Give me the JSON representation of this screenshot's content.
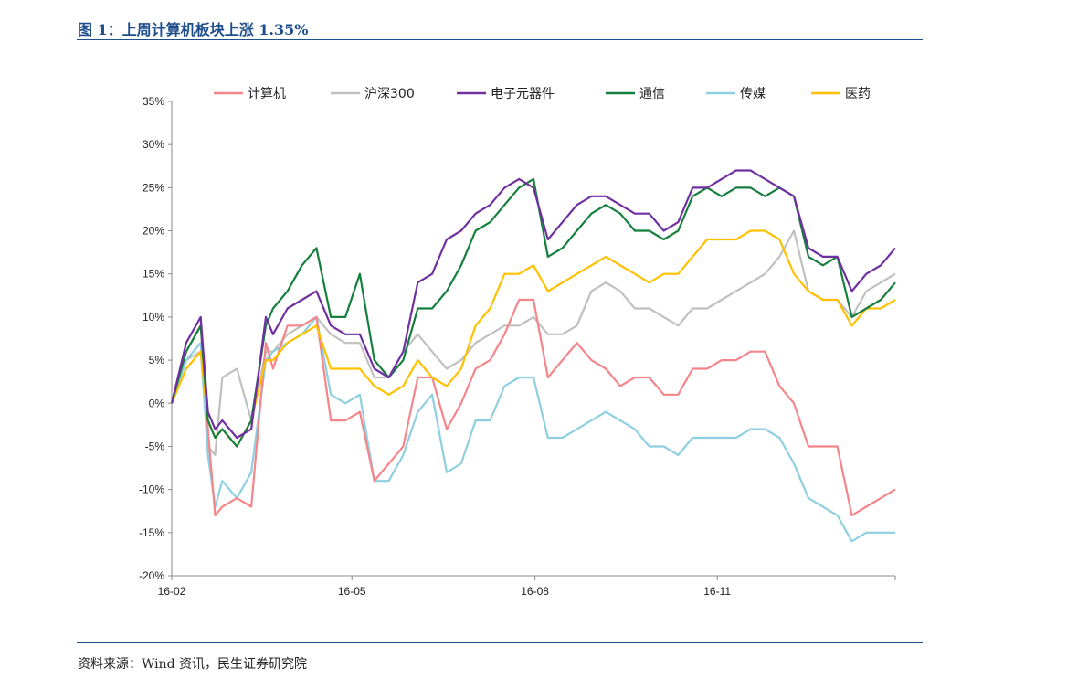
{
  "header": {
    "figure_title": "图 1：上周计算机板块上涨 1.35%"
  },
  "footer": {
    "source": "资料来源：Wind 资讯，民生证券研究院"
  },
  "chart_data": {
    "type": "line",
    "title": "",
    "xlabel": "",
    "ylabel": "",
    "ylim": [
      -20,
      35
    ],
    "xlim": [
      0,
      100
    ],
    "y_ticks": [
      35,
      30,
      25,
      20,
      15,
      10,
      5,
      0,
      -5,
      -10,
      -15,
      -20
    ],
    "y_tick_labels": [
      "35%",
      "30%",
      "25%",
      "20%",
      "15%",
      "10%",
      "5%",
      "0%",
      "-5%",
      "-10%",
      "-15%",
      "-20%"
    ],
    "x_ticks": [
      {
        "x": 0,
        "label": "16-02"
      },
      {
        "x": 24.9,
        "label": "16-05"
      },
      {
        "x": 50.2,
        "label": "16-08"
      },
      {
        "x": 75.4,
        "label": "16-11"
      }
    ],
    "legend": "top",
    "grid": false,
    "x": [
      0,
      2,
      4,
      5,
      6,
      7,
      9,
      11,
      13,
      14,
      16,
      18,
      20,
      22,
      24,
      26,
      28,
      30,
      32,
      34,
      36,
      38,
      40,
      42,
      44,
      46,
      48,
      50,
      52,
      54,
      56,
      58,
      60,
      62,
      64,
      66,
      68,
      70,
      72,
      74,
      76,
      78,
      80,
      82,
      84,
      86,
      88,
      90,
      92,
      94,
      96,
      98,
      100
    ],
    "series": [
      {
        "name": "计算机",
        "color": "#f4858a",
        "values": [
          0,
          6,
          9,
          -3,
          -13,
          -12,
          -11,
          -12,
          7,
          4,
          9,
          9,
          10,
          -2,
          -2,
          -1,
          -9,
          -7,
          -5,
          3,
          3,
          -3,
          0,
          4,
          5,
          8,
          12,
          12,
          3,
          5,
          7,
          5,
          4,
          2,
          3,
          3,
          1,
          1,
          4,
          4,
          5,
          5,
          6,
          6,
          2,
          0,
          -5,
          -5,
          -5,
          -13,
          -12,
          -11,
          -10
        ]
      },
      {
        "name": "沪深300",
        "color": "#c0c0c0",
        "values": [
          0,
          5,
          6,
          -5,
          -6,
          3,
          4,
          -2,
          6,
          6,
          8,
          9,
          10,
          8,
          7,
          7,
          3,
          3,
          6,
          8,
          6,
          4,
          5,
          7,
          8,
          9,
          9,
          10,
          8,
          8,
          9,
          13,
          14,
          13,
          11,
          11,
          10,
          9,
          11,
          11,
          12,
          13,
          14,
          15,
          17,
          20,
          13,
          12,
          12,
          10,
          13,
          14,
          15
        ]
      },
      {
        "name": "电子元器件",
        "color": "#7030a0",
        "values": [
          0,
          7,
          10,
          -1,
          -3,
          -2,
          -4,
          -3,
          10,
          8,
          11,
          12,
          13,
          9,
          8,
          8,
          4,
          3,
          6,
          14,
          15,
          19,
          20,
          22,
          23,
          25,
          26,
          25,
          19,
          21,
          23,
          24,
          24,
          23,
          22,
          22,
          20,
          21,
          25,
          25,
          26,
          27,
          27,
          26,
          25,
          24,
          18,
          17,
          17,
          13,
          15,
          16,
          18
        ]
      },
      {
        "name": "通信",
        "color": "#157f3d",
        "values": [
          0,
          6,
          9,
          -2,
          -4,
          -3,
          -5,
          -2,
          9,
          11,
          13,
          16,
          18,
          10,
          10,
          15,
          5,
          3,
          5,
          11,
          11,
          13,
          16,
          20,
          21,
          23,
          25,
          26,
          17,
          18,
          20,
          22,
          23,
          22,
          20,
          20,
          19,
          20,
          24,
          25,
          24,
          25,
          25,
          24,
          25,
          24,
          17,
          16,
          17,
          10,
          11,
          12,
          14
        ]
      },
      {
        "name": "传媒",
        "color": "#8ecfe1",
        "values": [
          0,
          5,
          7,
          -6,
          -12,
          -9,
          -11,
          -8,
          5,
          6,
          7,
          8,
          10,
          1,
          0,
          1,
          -9,
          -9,
          -6,
          -1,
          1,
          -8,
          -7,
          -2,
          -2,
          2,
          3,
          3,
          -4,
          -4,
          -3,
          -2,
          -1,
          -2,
          -3,
          -5,
          -5,
          -6,
          -4,
          -4,
          -4,
          -4,
          -3,
          -3,
          -4,
          -7,
          -11,
          -12,
          -13,
          -16,
          -15,
          -15,
          -15
        ]
      },
      {
        "name": "医药",
        "color": "#ffc000",
        "values": [
          0,
          4,
          6,
          -2,
          -4,
          -3,
          -5,
          -2,
          5,
          5,
          7,
          8,
          9,
          4,
          4,
          4,
          2,
          1,
          2,
          5,
          3,
          2,
          4,
          9,
          11,
          15,
          15,
          16,
          13,
          14,
          15,
          16,
          17,
          16,
          15,
          14,
          15,
          15,
          17,
          19,
          19,
          19,
          20,
          20,
          19,
          15,
          13,
          12,
          12,
          9,
          11,
          11,
          12
        ]
      }
    ]
  }
}
